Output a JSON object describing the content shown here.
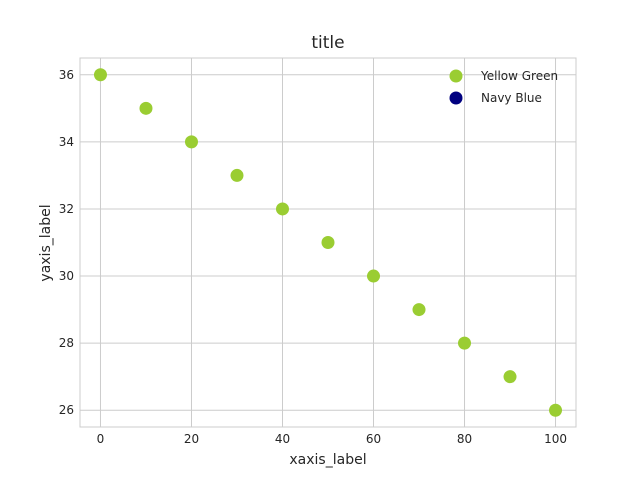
{
  "chart_data": {
    "type": "scatter",
    "title": "title",
    "xlabel": "xaxis_label",
    "ylabel": "yaxis_label",
    "xlim": [
      -4.5,
      104.5
    ],
    "ylim": [
      25.5,
      36.5
    ],
    "xticks": [
      0,
      20,
      40,
      60,
      80,
      100
    ],
    "yticks": [
      26,
      28,
      30,
      32,
      34,
      36
    ],
    "grid": true,
    "legend_position": "top-right",
    "series": [
      {
        "name": "Yellow Green",
        "color": "#9acd32",
        "x": [
          0,
          10,
          20,
          30,
          40,
          50,
          60,
          70,
          80,
          90,
          100
        ],
        "y": [
          36,
          35,
          34,
          33,
          32,
          31,
          30,
          29,
          28,
          27,
          26
        ]
      },
      {
        "name": "Navy Blue",
        "color": "#000080",
        "x": [],
        "y": []
      }
    ]
  }
}
